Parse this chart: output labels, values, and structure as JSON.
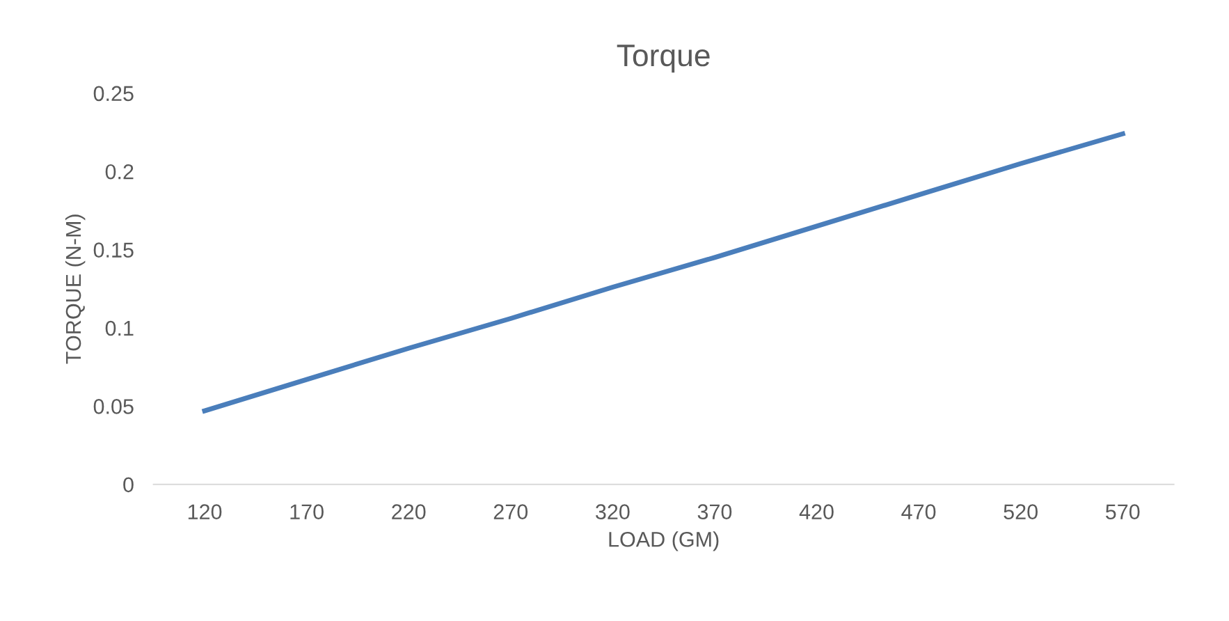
{
  "chart_data": {
    "type": "line",
    "title": "Torque",
    "xlabel": "LOAD (GM)",
    "ylabel": "TORQUE (N-M)",
    "categories": [
      "120",
      "170",
      "220",
      "270",
      "320",
      "370",
      "420",
      "470",
      "520",
      "570"
    ],
    "series": [
      {
        "color": "#4a7ebb",
        "values": [
          0.047,
          0.067,
          0.087,
          0.106,
          0.126,
          0.145,
          0.165,
          0.185,
          0.205,
          0.224
        ]
      }
    ],
    "ylim": [
      0,
      0.25
    ],
    "yticks": [
      0,
      0.05,
      0.1,
      0.15,
      0.2,
      0.25
    ],
    "grid": false,
    "marker": "none",
    "line_style": "solid"
  }
}
